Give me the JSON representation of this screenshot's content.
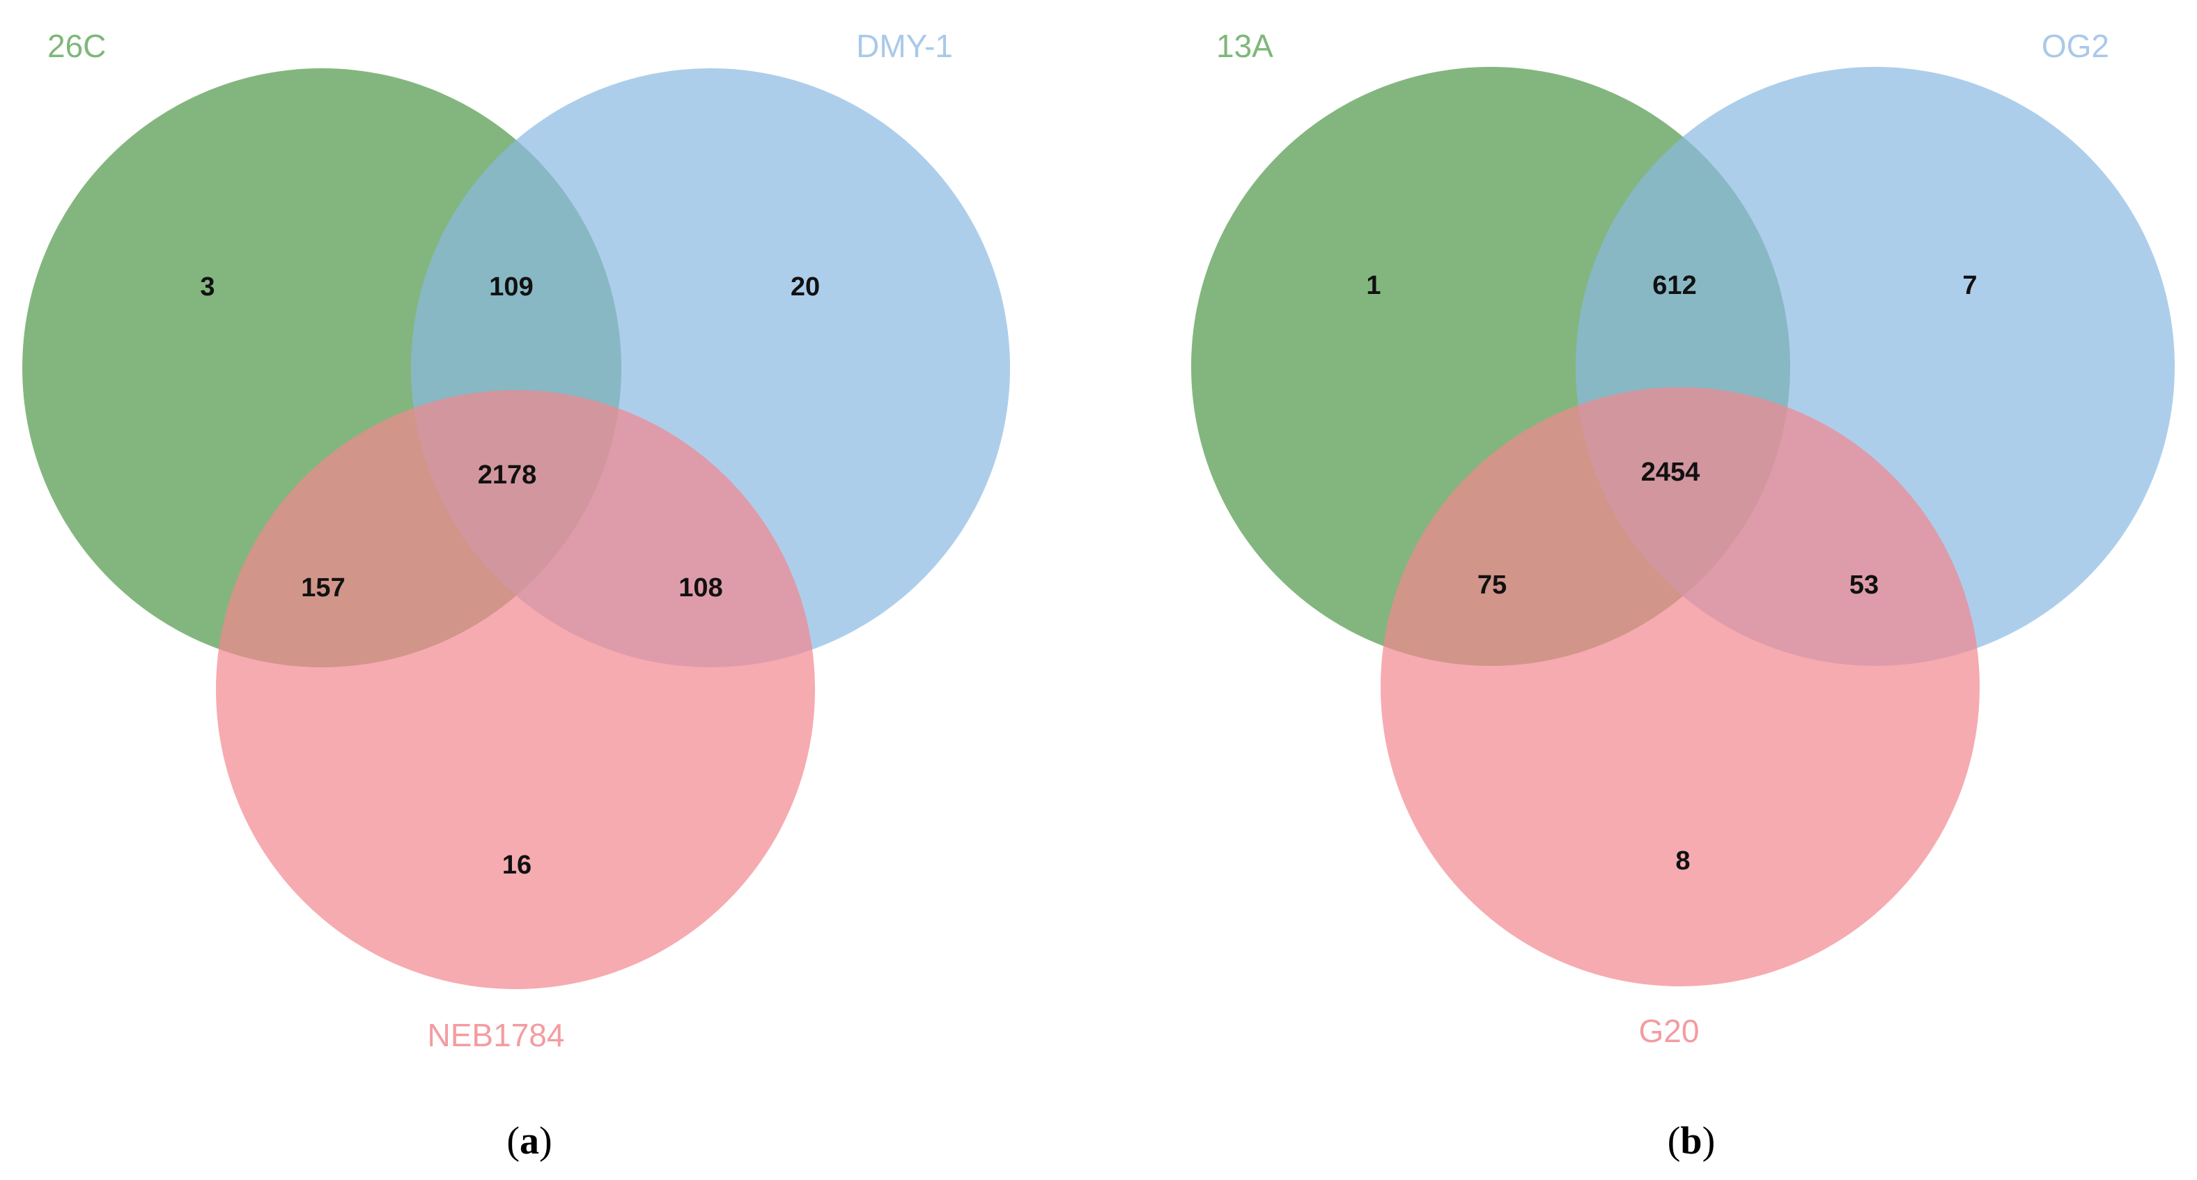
{
  "colors": {
    "set_a": "#5a9e53",
    "set_b": "#8ab9e3",
    "set_c": "#f2888e",
    "set_a_label": "#7fb77a",
    "set_b_label": "#a9c9ea",
    "set_c_label": "#f39ca1"
  },
  "panels": [
    {
      "id": "a",
      "caption_open": "(",
      "caption_letter": "a",
      "caption_close": ")",
      "sets": [
        "26C",
        "DMY-1",
        "NEB1784"
      ],
      "counts": {
        "only_a": "3",
        "only_b": "20",
        "only_c": "16",
        "a_b": "109",
        "a_c": "157",
        "b_c": "108",
        "a_b_c": "2178"
      }
    },
    {
      "id": "b",
      "caption_open": "(",
      "caption_letter": "b",
      "caption_close": ")",
      "sets": [
        "13A",
        "OG2",
        "G20"
      ],
      "counts": {
        "only_a": "1",
        "only_b": "7",
        "only_c": "8",
        "a_b": "612",
        "a_c": "75",
        "b_c": "53",
        "a_b_c": "2454"
      }
    }
  ]
}
